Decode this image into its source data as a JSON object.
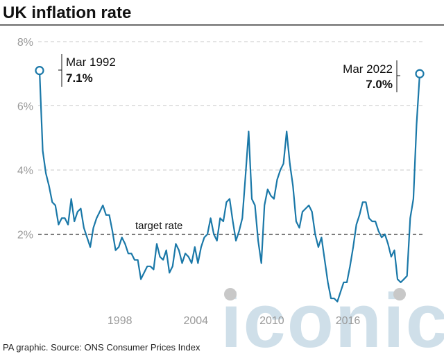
{
  "title": "UK inflation rate",
  "source": "PA graphic. Source: ONS Consumer Prices Index",
  "watermark": "iconic",
  "colors": {
    "line": "#1a78a8",
    "grid": "#c8c8c8",
    "target": "#333333",
    "text": "#111111",
    "tick": "#9a9a9a",
    "marker": "#c8c8c8"
  },
  "chart_data": {
    "type": "line",
    "title": "UK inflation rate",
    "xlabel": "",
    "ylabel": "",
    "ylim": [
      0,
      8
    ],
    "y_ticks": [
      2,
      4,
      6,
      8
    ],
    "y_tick_labels": [
      "2%",
      "4%",
      "6%",
      "8%"
    ],
    "x_ticks": [
      1998,
      2004,
      2010,
      2016
    ],
    "x_tick_labels": [
      "1998",
      "2004",
      "2010",
      "2016"
    ],
    "grid": "horizontal dashed",
    "target_rate": {
      "value": 2,
      "label": "target rate"
    },
    "annotations": [
      {
        "date": "Mar 1992",
        "value": 7.1,
        "label": "Mar 1992",
        "value_label": "7.1%"
      },
      {
        "date": "Mar 2022",
        "value": 7.0,
        "label": "Mar 2022",
        "value_label": "7.0%"
      }
    ],
    "series": [
      {
        "points": [
          [
            "1992-03",
            7.1
          ],
          [
            "1992-06",
            4.6
          ],
          [
            "1992-09",
            3.9
          ],
          [
            "1992-12",
            3.5
          ],
          [
            "1993-03",
            3.0
          ],
          [
            "1993-06",
            2.9
          ],
          [
            "1993-09",
            2.3
          ],
          [
            "1993-12",
            2.5
          ],
          [
            "1994-03",
            2.5
          ],
          [
            "1994-06",
            2.3
          ],
          [
            "1994-09",
            3.1
          ],
          [
            "1994-12",
            2.4
          ],
          [
            "1995-03",
            2.7
          ],
          [
            "1995-06",
            2.8
          ],
          [
            "1995-09",
            2.2
          ],
          [
            "1995-12",
            1.9
          ],
          [
            "1996-03",
            1.6
          ],
          [
            "1996-06",
            2.2
          ],
          [
            "1996-09",
            2.5
          ],
          [
            "1996-12",
            2.7
          ],
          [
            "1997-03",
            2.9
          ],
          [
            "1997-06",
            2.6
          ],
          [
            "1997-09",
            2.6
          ],
          [
            "1997-12",
            2.1
          ],
          [
            "1998-03",
            1.5
          ],
          [
            "1998-06",
            1.6
          ],
          [
            "1998-09",
            1.9
          ],
          [
            "1998-12",
            1.7
          ],
          [
            "1999-03",
            1.4
          ],
          [
            "1999-06",
            1.4
          ],
          [
            "1999-09",
            1.2
          ],
          [
            "1999-12",
            1.2
          ],
          [
            "2000-03",
            0.6
          ],
          [
            "2000-06",
            0.8
          ],
          [
            "2000-09",
            1.0
          ],
          [
            "2000-12",
            1.0
          ],
          [
            "2001-03",
            0.9
          ],
          [
            "2001-06",
            1.7
          ],
          [
            "2001-09",
            1.3
          ],
          [
            "2001-12",
            1.2
          ],
          [
            "2002-03",
            1.5
          ],
          [
            "2002-06",
            0.8
          ],
          [
            "2002-09",
            1.0
          ],
          [
            "2002-12",
            1.7
          ],
          [
            "2003-03",
            1.5
          ],
          [
            "2003-06",
            1.1
          ],
          [
            "2003-09",
            1.4
          ],
          [
            "2003-12",
            1.3
          ],
          [
            "2004-03",
            1.1
          ],
          [
            "2004-06",
            1.6
          ],
          [
            "2004-09",
            1.1
          ],
          [
            "2004-12",
            1.6
          ],
          [
            "2005-03",
            1.9
          ],
          [
            "2005-06",
            2.0
          ],
          [
            "2005-09",
            2.5
          ],
          [
            "2005-12",
            2.0
          ],
          [
            "2006-03",
            1.8
          ],
          [
            "2006-06",
            2.5
          ],
          [
            "2006-09",
            2.4
          ],
          [
            "2006-12",
            3.0
          ],
          [
            "2007-03",
            3.1
          ],
          [
            "2007-06",
            2.4
          ],
          [
            "2007-09",
            1.8
          ],
          [
            "2007-12",
            2.1
          ],
          [
            "2008-03",
            2.5
          ],
          [
            "2008-06",
            3.8
          ],
          [
            "2008-09",
            5.2
          ],
          [
            "2008-12",
            3.1
          ],
          [
            "2009-03",
            2.9
          ],
          [
            "2009-06",
            1.8
          ],
          [
            "2009-09",
            1.1
          ],
          [
            "2009-12",
            2.9
          ],
          [
            "2010-03",
            3.4
          ],
          [
            "2010-06",
            3.2
          ],
          [
            "2010-09",
            3.1
          ],
          [
            "2010-12",
            3.7
          ],
          [
            "2011-03",
            4.0
          ],
          [
            "2011-06",
            4.2
          ],
          [
            "2011-09",
            5.2
          ],
          [
            "2011-12",
            4.2
          ],
          [
            "2012-03",
            3.5
          ],
          [
            "2012-06",
            2.4
          ],
          [
            "2012-09",
            2.2
          ],
          [
            "2012-12",
            2.7
          ],
          [
            "2013-03",
            2.8
          ],
          [
            "2013-06",
            2.9
          ],
          [
            "2013-09",
            2.7
          ],
          [
            "2013-12",
            2.0
          ],
          [
            "2014-03",
            1.6
          ],
          [
            "2014-06",
            1.9
          ],
          [
            "2014-09",
            1.2
          ],
          [
            "2014-12",
            0.5
          ],
          [
            "2015-03",
            0.0
          ],
          [
            "2015-06",
            0.0
          ],
          [
            "2015-09",
            -0.1
          ],
          [
            "2015-12",
            0.2
          ],
          [
            "2016-03",
            0.5
          ],
          [
            "2016-06",
            0.5
          ],
          [
            "2016-09",
            1.0
          ],
          [
            "2016-12",
            1.6
          ],
          [
            "2017-03",
            2.3
          ],
          [
            "2017-06",
            2.6
          ],
          [
            "2017-09",
            3.0
          ],
          [
            "2017-12",
            3.0
          ],
          [
            "2018-03",
            2.5
          ],
          [
            "2018-06",
            2.4
          ],
          [
            "2018-09",
            2.4
          ],
          [
            "2018-12",
            2.1
          ],
          [
            "2019-03",
            1.9
          ],
          [
            "2019-06",
            2.0
          ],
          [
            "2019-09",
            1.7
          ],
          [
            "2019-12",
            1.3
          ],
          [
            "2020-03",
            1.5
          ],
          [
            "2020-06",
            0.6
          ],
          [
            "2020-09",
            0.5
          ],
          [
            "2020-12",
            0.6
          ],
          [
            "2021-03",
            0.7
          ],
          [
            "2021-06",
            2.5
          ],
          [
            "2021-09",
            3.1
          ],
          [
            "2021-12",
            5.4
          ],
          [
            "2022-03",
            7.0
          ]
        ]
      }
    ]
  }
}
